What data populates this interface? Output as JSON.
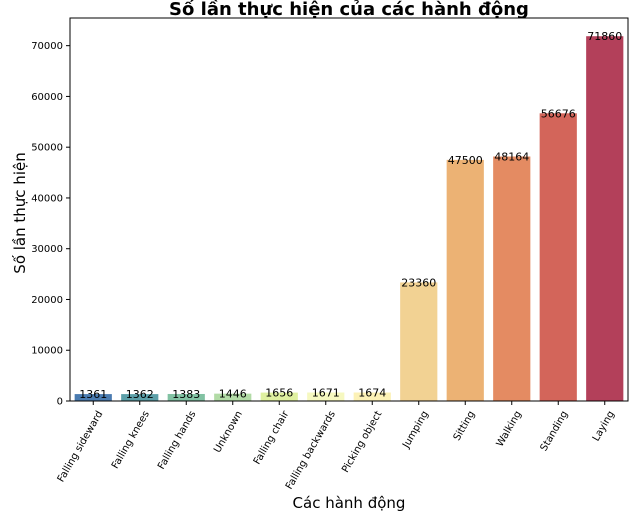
{
  "chart_data": {
    "type": "bar",
    "title": "Số lần thực hiện của các hành động",
    "xlabel": "Các hành động",
    "ylabel": "Số lần thực hiện",
    "categories": [
      "Falling sideward",
      "Falling knees",
      "Falling hands",
      "Unknown",
      "Falling chair",
      "Falling backwards",
      "Picking object",
      "Jumping",
      "Sitting",
      "Walking",
      "Standing",
      "Laying"
    ],
    "values": [
      1361,
      1362,
      1383,
      1446,
      1656,
      1671,
      1674,
      23360,
      47500,
      48164,
      56676,
      71860
    ],
    "value_labels": [
      "1361",
      "1362",
      "1383",
      "1446",
      "1656",
      "1671",
      "1674",
      "23360",
      "47500",
      "48164",
      "56676",
      "71860"
    ],
    "colors": [
      "#4a7bb0",
      "#5c9fa8",
      "#82c2a3",
      "#b2dba6",
      "#dff0a0",
      "#f6f8c0",
      "#fcf1b6",
      "#f2d293",
      "#ecb274",
      "#e48b62",
      "#d3655a",
      "#b3405a"
    ],
    "ylim": [
      0,
      75450
    ],
    "yticks": [
      0,
      10000,
      20000,
      30000,
      40000,
      50000,
      60000,
      70000
    ],
    "ytick_labels": [
      "0",
      "10000",
      "20000",
      "30000",
      "40000",
      "50000",
      "60000",
      "70000"
    ],
    "grid": false,
    "legend": "none"
  }
}
